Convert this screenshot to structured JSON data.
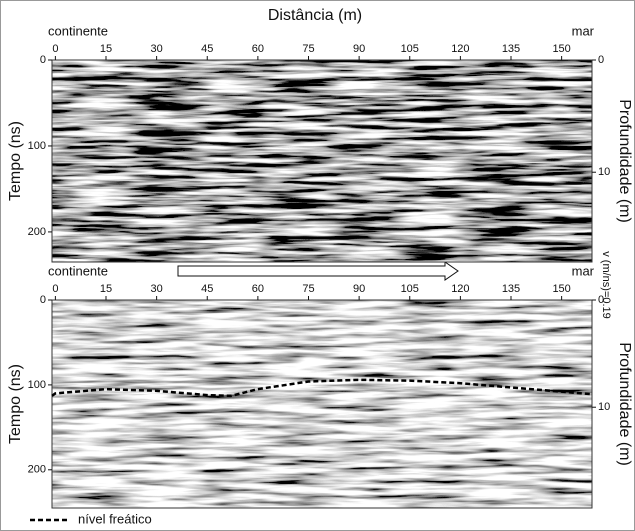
{
  "title": "Distância (m)",
  "velocity_label": "v (m/ns)=0.19",
  "legend": "nível freático",
  "panels": [
    {
      "left_label": "continente",
      "right_label": "mar",
      "y_label": "Tempo (ns)",
      "y2_label": "Profundidade (m)",
      "xlim": [
        -1,
        159
      ],
      "xticks": [
        0,
        15,
        30,
        45,
        60,
        75,
        90,
        105,
        120,
        135,
        150
      ],
      "ylim": [
        0,
        235
      ],
      "yticks": [
        0,
        100,
        200
      ],
      "y2lim": [
        0,
        18
      ],
      "y2ticks": [
        0,
        10
      ]
    },
    {
      "left_label": "continente",
      "right_label": "mar",
      "y_label": "Tempo (ns)",
      "y2_label": "Profundidade (m)",
      "xlim": [
        -1,
        159
      ],
      "xticks": [
        0,
        15,
        30,
        45,
        60,
        75,
        90,
        105,
        120,
        135,
        150
      ],
      "ylim": [
        0,
        245
      ],
      "yticks": [
        0,
        100,
        200
      ],
      "y2lim": [
        0,
        19.4
      ],
      "y2ticks": [
        0,
        10
      ],
      "water_table": {
        "x": [
          -1,
          0,
          15,
          30,
          45,
          52,
          60,
          75,
          90,
          105,
          120,
          135,
          150,
          159
        ],
        "values": [
          113,
          110,
          105,
          107,
          112,
          113,
          105,
          96,
          94,
          95,
          98,
          103,
          108,
          111
        ]
      }
    }
  ]
}
